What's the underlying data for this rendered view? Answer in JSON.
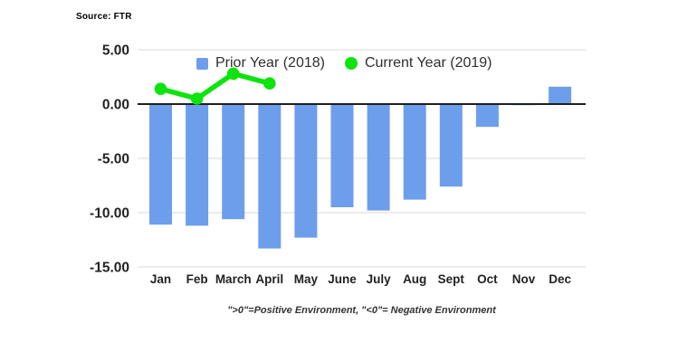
{
  "source": {
    "label": "Source: FTR"
  },
  "legend": {
    "items": [
      {
        "label": "Prior Year (2018)",
        "marker": "square",
        "color": "#6d9eeb"
      },
      {
        "label": "Current Year (2019)",
        "marker": "circle",
        "color": "#0de30d"
      }
    ]
  },
  "footnote": {
    "text": "\">0\"=Positive Environment, \"<0\"= Negative Environment"
  },
  "colors": {
    "bar": "#6d9eeb",
    "line": "#0de30d",
    "gridline": "#d9d9d9",
    "zero_axis": "#1f1f1f",
    "axis_text": "#222222"
  },
  "chart_data": {
    "type": "bar",
    "title": "",
    "xlabel": "",
    "ylabel": "",
    "categories": [
      "Jan",
      "Feb",
      "March",
      "April",
      "May",
      "June",
      "July",
      "Aug",
      "Sept",
      "Oct",
      "Nov",
      "Dec"
    ],
    "series": [
      {
        "name": "Prior Year (2018)",
        "type": "bar",
        "color": "#6d9eeb",
        "values": [
          -11.1,
          -11.2,
          -10.6,
          -13.3,
          -12.3,
          -9.5,
          -9.8,
          -8.8,
          -7.6,
          -2.1,
          -0.1,
          1.6
        ]
      },
      {
        "name": "Current Year (2019)",
        "type": "line",
        "color": "#0de30d",
        "values": [
          1.4,
          0.5,
          2.8,
          1.9,
          null,
          null,
          null,
          null,
          null,
          null,
          null,
          null
        ]
      }
    ],
    "ylim": [
      -15,
      5
    ],
    "yticks": [
      {
        "value": 5,
        "label": "5.00"
      },
      {
        "value": 0,
        "label": "0.00"
      },
      {
        "value": -5,
        "label": "-5.00"
      },
      {
        "value": -10,
        "label": "-10.00"
      },
      {
        "value": -15,
        "label": "-15.00"
      }
    ],
    "grid": true,
    "legend_position": "top-center"
  }
}
